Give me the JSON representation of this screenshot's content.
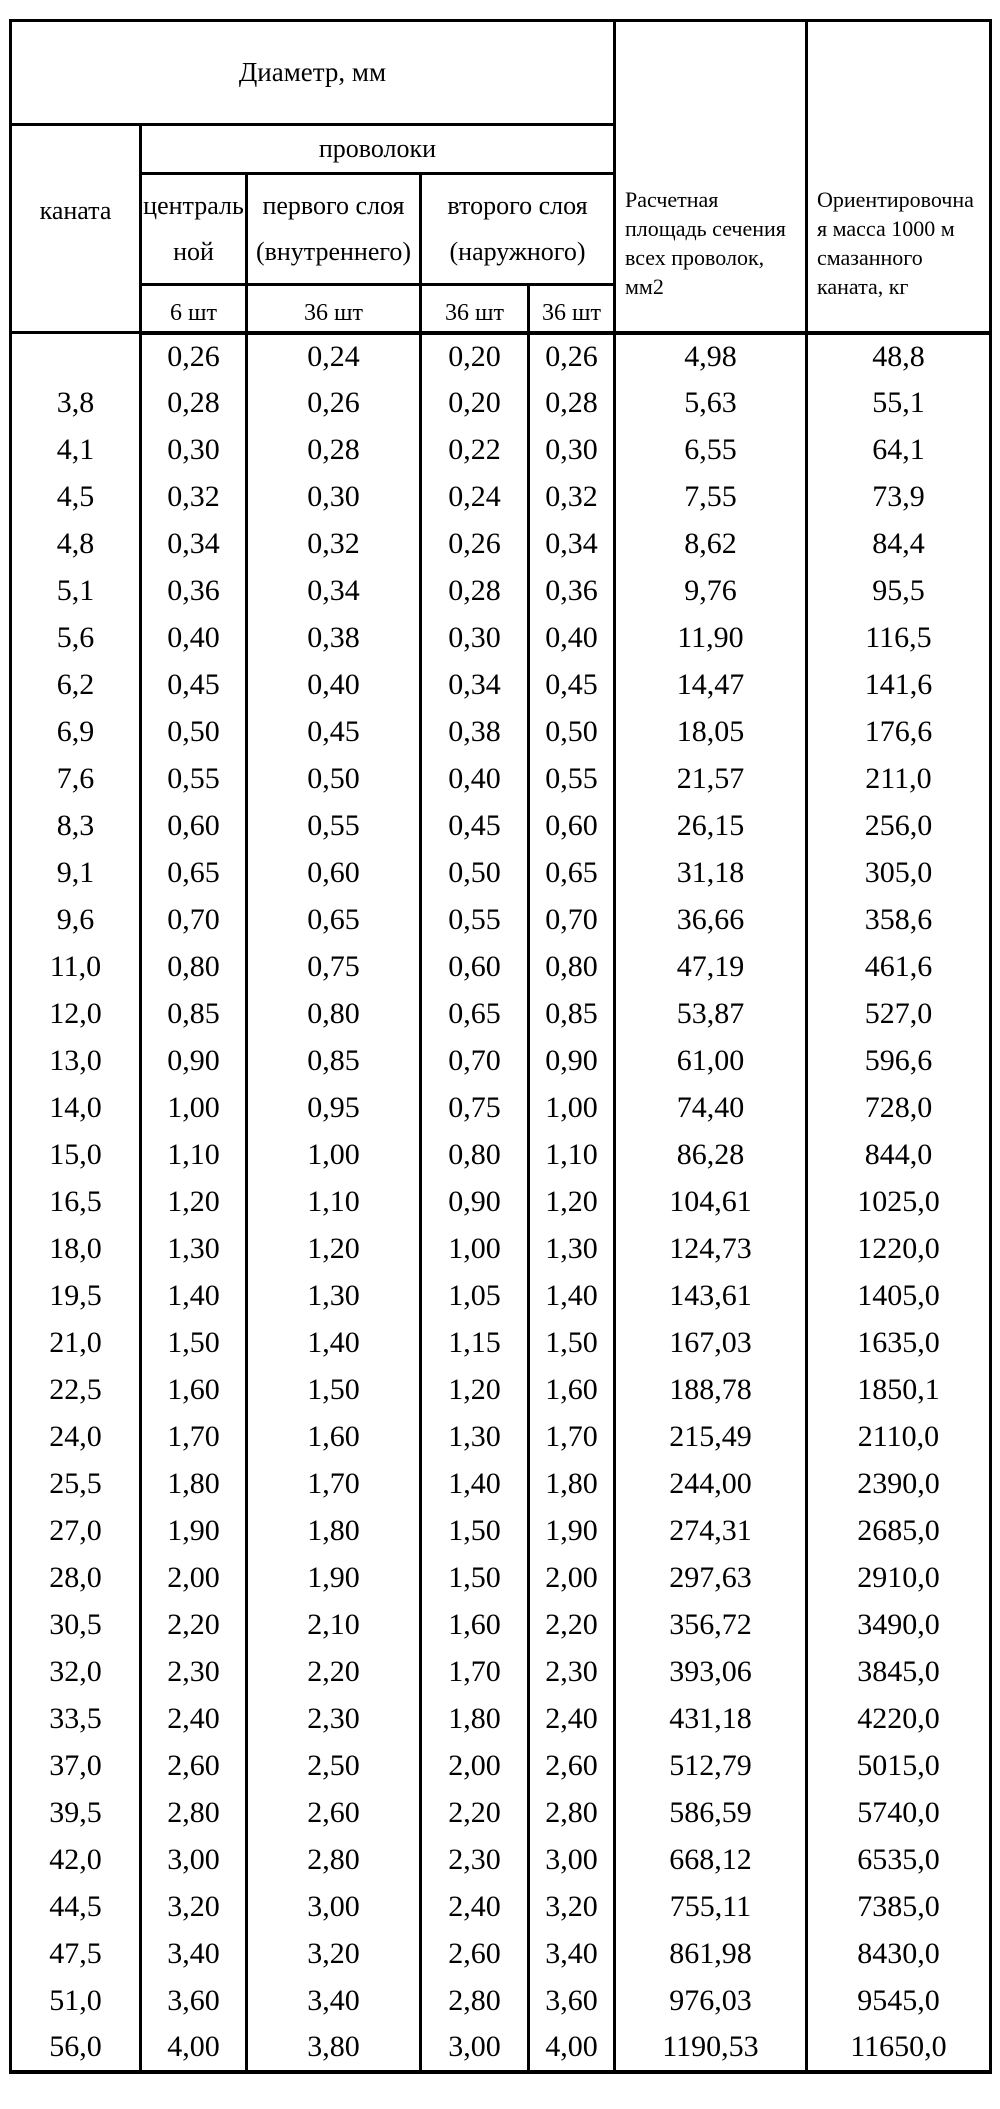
{
  "page": {
    "background": "#ffffff",
    "line_color": "#000000"
  },
  "table": {
    "header": {
      "diameter": "Диаметр, мм",
      "rope": "каната",
      "wires": "проволоки",
      "central": "централь\nной",
      "first_layer": "первого слоя\n(внутреннего)",
      "second_layer": "второго слоя\n(наружного)",
      "counts": [
        "6 шт",
        "36 шт",
        "36 шт",
        "36 шт"
      ],
      "area": "Расчетная\nплощадь сечения\nвсех проволок,\nмм2",
      "mass": "Ориентировочна\nя масса 1000 м\nсмазанного\nканата, кг"
    },
    "rows": [
      [
        "",
        "0,26",
        "0,24",
        "0,20",
        "0,26",
        "4,98",
        "48,8"
      ],
      [
        "3,8",
        "0,28",
        "0,26",
        "0,20",
        "0,28",
        "5,63",
        "55,1"
      ],
      [
        "4,1",
        "0,30",
        "0,28",
        "0,22",
        "0,30",
        "6,55",
        "64,1"
      ],
      [
        "4,5",
        "0,32",
        "0,30",
        "0,24",
        "0,32",
        "7,55",
        "73,9"
      ],
      [
        "4,8",
        "0,34",
        "0,32",
        "0,26",
        "0,34",
        "8,62",
        "84,4"
      ],
      [
        "5,1",
        "0,36",
        "0,34",
        "0,28",
        "0,36",
        "9,76",
        "95,5"
      ],
      [
        "5,6",
        "0,40",
        "0,38",
        "0,30",
        "0,40",
        "11,90",
        "116,5"
      ],
      [
        "6,2",
        "0,45",
        "0,40",
        "0,34",
        "0,45",
        "14,47",
        "141,6"
      ],
      [
        "6,9",
        "0,50",
        "0,45",
        "0,38",
        "0,50",
        "18,05",
        "176,6"
      ],
      [
        "7,6",
        "0,55",
        "0,50",
        "0,40",
        "0,55",
        "21,57",
        "211,0"
      ],
      [
        "8,3",
        "0,60",
        "0,55",
        "0,45",
        "0,60",
        "26,15",
        "256,0"
      ],
      [
        "9,1",
        "0,65",
        "0,60",
        "0,50",
        "0,65",
        "31,18",
        "305,0"
      ],
      [
        "9,6",
        "0,70",
        "0,65",
        "0,55",
        "0,70",
        "36,66",
        "358,6"
      ],
      [
        "11,0",
        "0,80",
        "0,75",
        "0,60",
        "0,80",
        "47,19",
        "461,6"
      ],
      [
        "12,0",
        "0,85",
        "0,80",
        "0,65",
        "0,85",
        "53,87",
        "527,0"
      ],
      [
        "13,0",
        "0,90",
        "0,85",
        "0,70",
        "0,90",
        "61,00",
        "596,6"
      ],
      [
        "14,0",
        "1,00",
        "0,95",
        "0,75",
        "1,00",
        "74,40",
        "728,0"
      ],
      [
        "15,0",
        "1,10",
        "1,00",
        "0,80",
        "1,10",
        "86,28",
        "844,0"
      ],
      [
        "16,5",
        "1,20",
        "1,10",
        "0,90",
        "1,20",
        "104,61",
        "1025,0"
      ],
      [
        "18,0",
        "1,30",
        "1,20",
        "1,00",
        "1,30",
        "124,73",
        "1220,0"
      ],
      [
        "19,5",
        "1,40",
        "1,30",
        "1,05",
        "1,40",
        "143,61",
        "1405,0"
      ],
      [
        "21,0",
        "1,50",
        "1,40",
        "1,15",
        "1,50",
        "167,03",
        "1635,0"
      ],
      [
        "22,5",
        "1,60",
        "1,50",
        "1,20",
        "1,60",
        "188,78",
        "1850,1"
      ],
      [
        "24,0",
        "1,70",
        "1,60",
        "1,30",
        "1,70",
        "215,49",
        "2110,0"
      ],
      [
        "25,5",
        "1,80",
        "1,70",
        "1,40",
        "1,80",
        "244,00",
        "2390,0"
      ],
      [
        "27,0",
        "1,90",
        "1,80",
        "1,50",
        "1,90",
        "274,31",
        "2685,0"
      ],
      [
        "28,0",
        "2,00",
        "1,90",
        "1,50",
        "2,00",
        "297,63",
        "2910,0"
      ],
      [
        "30,5",
        "2,20",
        "2,10",
        "1,60",
        "2,20",
        "356,72",
        "3490,0"
      ],
      [
        "32,0",
        "2,30",
        "2,20",
        "1,70",
        "2,30",
        "393,06",
        "3845,0"
      ],
      [
        "33,5",
        "2,40",
        "2,30",
        "1,80",
        "2,40",
        "431,18",
        "4220,0"
      ],
      [
        "37,0",
        "2,60",
        "2,50",
        "2,00",
        "2,60",
        "512,79",
        "5015,0"
      ],
      [
        "39,5",
        "2,80",
        "2,60",
        "2,20",
        "2,80",
        "586,59",
        "5740,0"
      ],
      [
        "42,0",
        "3,00",
        "2,80",
        "2,30",
        "3,00",
        "668,12",
        "6535,0"
      ],
      [
        "44,5",
        "3,20",
        "3,00",
        "2,40",
        "3,20",
        "755,11",
        "7385,0"
      ],
      [
        "47,5",
        "3,40",
        "3,20",
        "2,60",
        "3,40",
        "861,98",
        "8430,0"
      ],
      [
        "51,0",
        "3,60",
        "3,40",
        "2,80",
        "3,60",
        "976,03",
        "9545,0"
      ],
      [
        "56,0",
        "4,00",
        "3,80",
        "3,00",
        "4,00",
        "1190,53",
        "11650,0"
      ]
    ]
  },
  "chart_data": {
    "type": "table",
    "title": "Диаметр, мм — характеристики каната",
    "columns": [
      "Диаметр каната, мм",
      "Диаметр центральной проволоки (6 шт), мм",
      "Диаметр проволоки первого слоя (внутреннего) (36 шт), мм",
      "Диаметр проволоки второго слоя (наружного) (36 шт), мм",
      "Диаметр проволоки второго слоя (наружного) (36 шт), мм",
      "Расчетная площадь сечения всех проволок, мм2",
      "Ориентировочная масса 1000 м смазанного каната, кг"
    ]
  }
}
